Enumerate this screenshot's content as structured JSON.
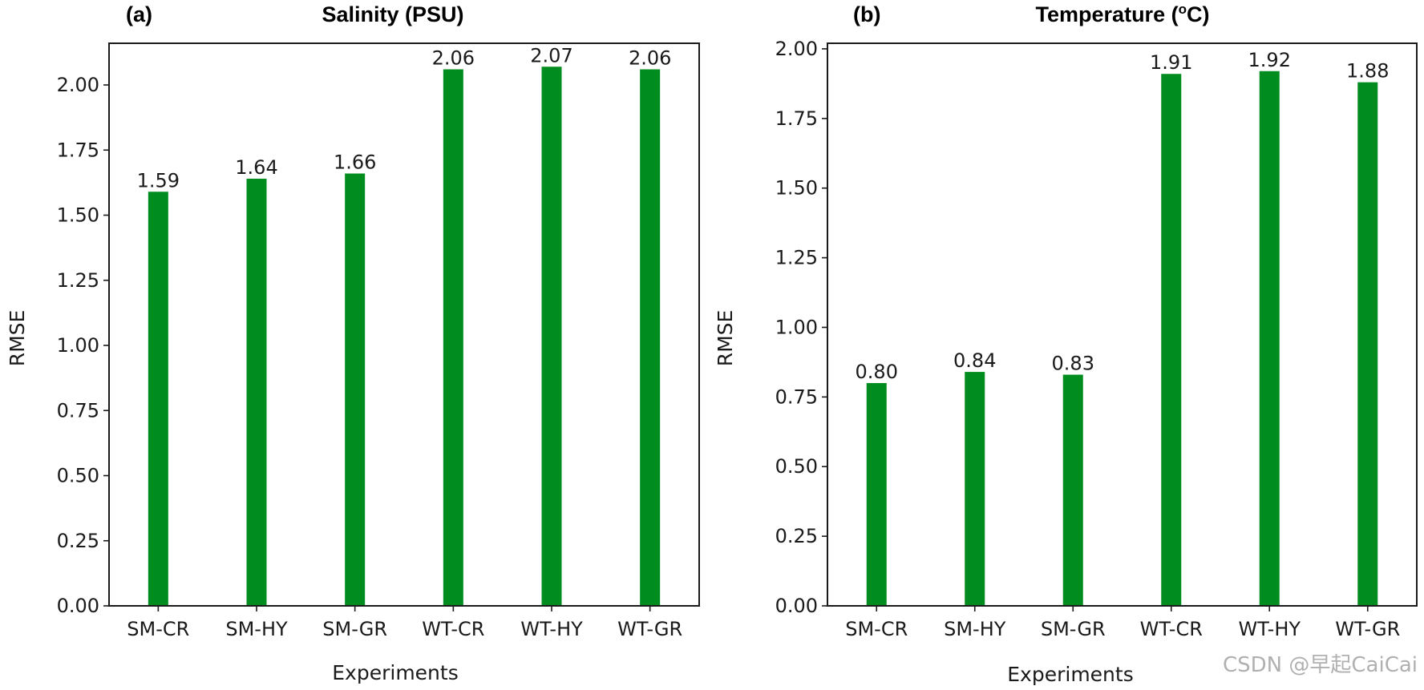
{
  "chart_data": [
    {
      "type": "bar",
      "panel_label": "(a)",
      "title": "Salinity (PSU)",
      "xlabel": "Experiments",
      "ylabel": "RMSE",
      "categories": [
        "SM-CR",
        "SM-HY",
        "SM-GR",
        "WT-CR",
        "WT-HY",
        "WT-GR"
      ],
      "values": [
        1.59,
        1.64,
        1.66,
        2.06,
        2.07,
        2.06
      ],
      "value_labels": [
        "1.59",
        "1.64",
        "1.66",
        "2.06",
        "2.07",
        "2.06"
      ],
      "ylim": [
        0,
        2.16
      ],
      "yticks": [
        "0.00",
        "0.25",
        "0.50",
        "0.75",
        "1.00",
        "1.25",
        "1.50",
        "1.75",
        "2.00"
      ],
      "bar_color": "#008c1e",
      "grid": false
    },
    {
      "type": "bar",
      "panel_label": "(b)",
      "title": "Temperature (",
      "title_superscript": "o",
      "title_suffix": "C)",
      "xlabel": "Experiments",
      "ylabel": "RMSE",
      "categories": [
        "SM-CR",
        "SM-HY",
        "SM-GR",
        "WT-CR",
        "WT-HY",
        "WT-GR"
      ],
      "values": [
        0.8,
        0.84,
        0.83,
        1.91,
        1.92,
        1.88
      ],
      "value_labels": [
        "0.80",
        "0.84",
        "0.83",
        "1.91",
        "1.92",
        "1.88"
      ],
      "ylim": [
        0,
        2.02
      ],
      "yticks": [
        "0.00",
        "0.25",
        "0.50",
        "0.75",
        "1.00",
        "1.25",
        "1.50",
        "1.75",
        "2.00"
      ],
      "bar_color": "#008c1e",
      "grid": false
    }
  ],
  "watermark": "CSDN @早起CaiCai"
}
